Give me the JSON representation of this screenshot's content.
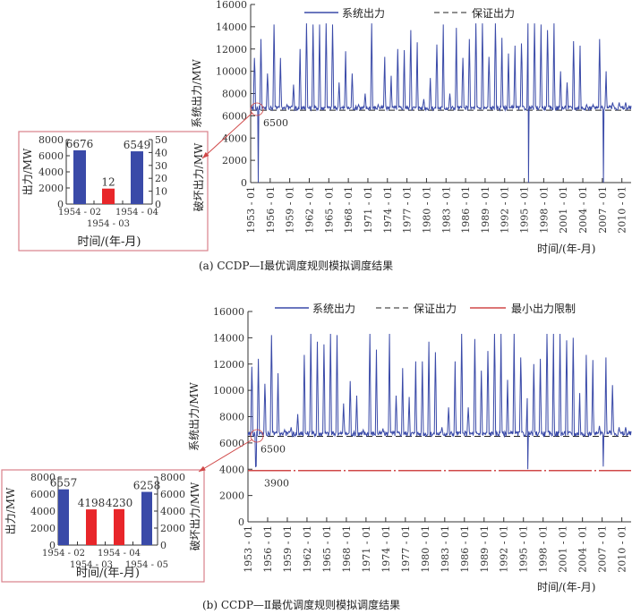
{
  "chart_data": [
    {
      "id": "a-main",
      "type": "line",
      "ylabel": "系统出力/MW",
      "xlabel": "时间/(年-月)",
      "ylim": [
        0,
        16000
      ],
      "yticks": [
        0,
        2000,
        4000,
        6000,
        8000,
        10000,
        12000,
        14000,
        16000
      ],
      "xrange": [
        "1953-01",
        "2011-06"
      ],
      "xticks": [
        "1953-01",
        "1956-01",
        "1959-01",
        "1962-01",
        "1965-01",
        "1968-01",
        "1971-01",
        "1974-01",
        "1977-01",
        "1980-01",
        "1983-01",
        "1986-01",
        "1989-01",
        "1992-01",
        "1995-01",
        "1998-01",
        "2001-01",
        "2004-01",
        "2007-01",
        "2010-01"
      ],
      "legend": [
        "系统出力",
        "保证出力"
      ],
      "guaranteed_output": 6500,
      "guaranteed_label": "6500",
      "base_output": 6700,
      "annual_peaks": {
        "years_from": 1953,
        "values": [
          11200,
          12900,
          9800,
          14200,
          11200,
          7000,
          8800,
          12000,
          14300,
          14200,
          14200,
          14300,
          14200,
          9000,
          11800,
          9800,
          7000,
          8000,
          14300,
          7000,
          11300,
          9600,
          12000,
          11900,
          13700,
          12600,
          7500,
          9400,
          12400,
          14200,
          8000,
          13900,
          11200,
          12900,
          14300,
          14300,
          11300,
          14300,
          13000,
          11600,
          12300,
          12500,
          14300,
          14300,
          14200,
          13700,
          14300,
          10000,
          9000,
          12700,
          12300,
          7000,
          7000,
          12900,
          10000,
          7200,
          7200,
          7200
        ]
      },
      "dips": [
        {
          "month": "1954-03",
          "value": 12
        },
        {
          "month": "1995-09",
          "value": 0
        },
        {
          "month": "2007-03",
          "value": 0
        }
      ],
      "caption": "(a) CCDP—Ⅰ最优调度规则模拟调度结果"
    },
    {
      "id": "a-inset",
      "type": "bar",
      "categories": [
        "1954-02",
        "1954-03",
        "1954-04"
      ],
      "values": [
        6676,
        12,
        6549
      ],
      "axis": [
        "left",
        "right",
        "left"
      ],
      "colors": [
        "#3a4aa8",
        "#e8262a",
        "#3a4aa8"
      ],
      "ylabel": "出力/MW",
      "y2label": "破坏出力/MW",
      "xlabel": "时间/(年-月)",
      "ylim": [
        0,
        8000
      ],
      "yticks": [
        0,
        2000,
        4000,
        6000,
        8000
      ],
      "y2lim": [
        0,
        50
      ],
      "y2ticks": [
        0,
        10,
        20,
        30,
        40,
        50
      ]
    },
    {
      "id": "b-main",
      "type": "line",
      "ylabel": "系统出力/MW",
      "xlabel": "时间/(年-月)",
      "ylim": [
        0,
        16000
      ],
      "yticks": [
        0,
        2000,
        4000,
        6000,
        8000,
        10000,
        12000,
        14000,
        16000
      ],
      "xrange": [
        "1953-01",
        "2011-06"
      ],
      "xticks": [
        "1953-01",
        "1956-01",
        "1959-01",
        "1962-01",
        "1965-01",
        "1968-01",
        "1971-01",
        "1974-01",
        "1977-01",
        "1980-01",
        "1983-01",
        "1986-01",
        "1989-01",
        "1992-01",
        "1995-01",
        "1998-01",
        "2001-01",
        "2004-01",
        "2007-01",
        "2010-01"
      ],
      "legend": [
        "系统出力",
        "保证出力",
        "最小出力限制"
      ],
      "guaranteed_output": 6500,
      "guaranteed_label": "6500",
      "min_output": 3900,
      "min_label": "3900",
      "base_output": 6700,
      "annual_peaks": {
        "years_from": 1953,
        "values": [
          11800,
          12400,
          10500,
          14200,
          11300,
          7000,
          7200,
          8200,
          12700,
          14300,
          13700,
          13500,
          14300,
          14200,
          9000,
          10700,
          9600,
          7000,
          14300,
          13100,
          7100,
          14300,
          9600,
          11700,
          9500,
          12200,
          12200,
          13700,
          12900,
          7200,
          8700,
          12200,
          14300,
          8700,
          13900,
          11500,
          13000,
          14300,
          14300,
          10800,
          14300,
          12500,
          9400,
          12000,
          12400,
          14300,
          14300,
          14300,
          13800,
          14000,
          9800,
          12700,
          12300,
          7300,
          12500,
          10400,
          7200,
          7200
        ]
      },
      "dips": [
        {
          "month": "1954-03",
          "value": 4198
        },
        {
          "month": "1954-04",
          "value": 4230
        },
        {
          "month": "1995-09",
          "value": 4000
        },
        {
          "month": "2007-03",
          "value": 4200
        }
      ],
      "caption": "(b) CCDP—Ⅱ最优调度规则模拟调度结果"
    },
    {
      "id": "b-inset",
      "type": "bar",
      "categories": [
        "1954-02",
        "1954-03",
        "1954-04",
        "1954-05"
      ],
      "values": [
        6557,
        4198,
        4230,
        6258
      ],
      "axis": [
        "left",
        "right",
        "right",
        "left"
      ],
      "colors": [
        "#3a4aa8",
        "#e8262a",
        "#e8262a",
        "#3a4aa8"
      ],
      "ylabel": "出力/MW",
      "y2label": "破坏出力/MW",
      "xlabel": "时间/(年-月)",
      "ylim": [
        0,
        8000
      ],
      "yticks": [
        0,
        2000,
        4000,
        6000,
        8000
      ],
      "y2lim": [
        0,
        8000
      ],
      "y2ticks": [
        0,
        2000,
        4000,
        6000,
        8000
      ]
    }
  ],
  "colors": {
    "series": "#3a4aa8",
    "min_limit": "#d04848",
    "inset_border": "#d9808a",
    "arrow": "#d04848"
  }
}
